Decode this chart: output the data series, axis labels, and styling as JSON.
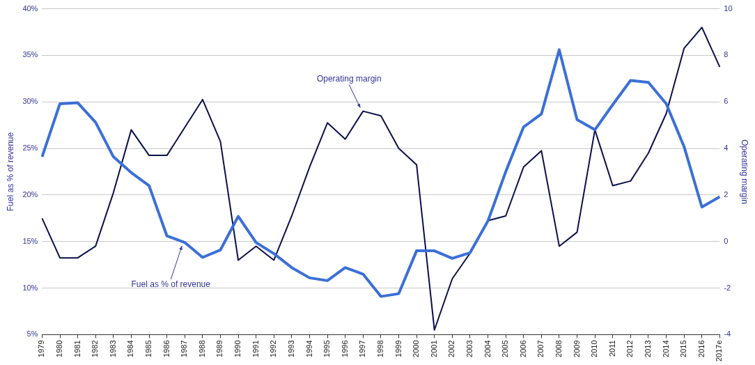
{
  "chart_data": {
    "type": "line",
    "ylabel": "Fuel as % of revenue",
    "y2label": "Operating margin",
    "categories": [
      "1979",
      "1980",
      "1981",
      "1982",
      "1983",
      "1984",
      "1985",
      "1986",
      "1987",
      "1988",
      "1989",
      "1990",
      "1991",
      "1992",
      "1993",
      "1994",
      "1995",
      "1996",
      "1997",
      "1998",
      "1999",
      "2000",
      "2001",
      "2002",
      "2003",
      "2004",
      "2005",
      "2006",
      "2007",
      "2008",
      "2009",
      "2010",
      "2011",
      "2012",
      "2013",
      "2014",
      "2015",
      "2016",
      "2017e"
    ],
    "series": [
      {
        "color": "#3b6fd8",
        "values": [
          24.1,
          29.8,
          29.9,
          27.8,
          24.1,
          22.4,
          21.0,
          15.6,
          14.9,
          13.3,
          14.1,
          17.7,
          14.9,
          13.7,
          12.2,
          11.1,
          10.8,
          12.2,
          11.5,
          9.1,
          9.4,
          14.0,
          14.0,
          13.2,
          13.8,
          17.2,
          22.5,
          27.3,
          28.7,
          35.6,
          28.1,
          27.0,
          29.7,
          32.3,
          32.1,
          29.8,
          25.2,
          18.7,
          19.8
        ]
      },
      {
        "color": "#0a0f4a",
        "axis": "y2",
        "values": [
          1.0,
          -0.7,
          -0.7,
          -0.2,
          2.1,
          4.8,
          3.7,
          3.7,
          4.9,
          6.1,
          4.3,
          -0.8,
          -0.2,
          -0.8,
          1.1,
          3.2,
          5.1,
          4.4,
          5.6,
          5.4,
          4.0,
          3.3,
          -3.8,
          -1.6,
          -0.5,
          0.9,
          1.1,
          3.2,
          3.9,
          -0.2,
          0.4,
          4.8,
          2.4,
          2.6,
          3.8,
          5.5,
          8.3,
          9.2,
          7.5
        ]
      }
    ],
    "ylim": [
      5,
      40
    ],
    "yticks": [
      {
        "value": 5,
        "label": "5%"
      },
      {
        "value": 10,
        "label": "10%"
      },
      {
        "value": 15,
        "label": "15%"
      },
      {
        "value": 20,
        "label": "20%"
      },
      {
        "value": 25,
        "label": "25%"
      },
      {
        "value": 30,
        "label": "30%"
      },
      {
        "value": 35,
        "label": "35%"
      },
      {
        "value": 40,
        "label": "40%"
      }
    ],
    "y2lim": [
      -4,
      10
    ],
    "y2ticks": [
      -4,
      -2,
      0,
      2,
      4,
      6,
      8,
      10
    ],
    "grid": "y",
    "legend": false,
    "marker": "none",
    "line_style": "solid",
    "annotations": [
      {
        "text": "Operating margin",
        "x": "1997",
        "y": 29.0
      },
      {
        "text": "Fuel as % of revenue",
        "x": "1987",
        "y": 14.9
      }
    ]
  }
}
